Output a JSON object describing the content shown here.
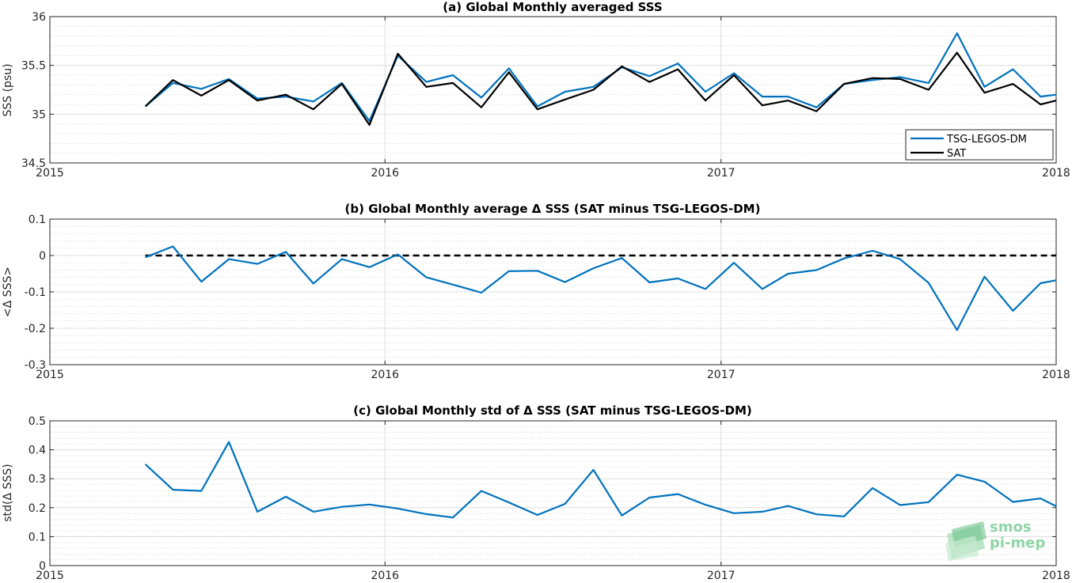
{
  "chart_data": [
    {
      "type": "line",
      "title": "(a) Global Monthly averaged SSS",
      "xlabel": "",
      "ylabel": "SSS (psu)",
      "xlim": [
        "2015-01-01",
        "2018-01-01"
      ],
      "ylim": [
        34.5,
        36
      ],
      "xticks": [
        "2015",
        "2016",
        "2017",
        "2018"
      ],
      "yticks": [
        "34.5",
        "35",
        "35.5",
        "36"
      ],
      "grid": true,
      "legend": "bottom-right",
      "x": [
        "2015-04-15",
        "2015-05-15",
        "2015-06-15",
        "2015-07-15",
        "2015-08-15",
        "2015-09-15",
        "2015-10-15",
        "2015-11-15",
        "2015-12-15",
        "2016-01-15",
        "2016-02-15",
        "2016-03-15",
        "2016-04-15",
        "2016-05-15",
        "2016-06-15",
        "2016-07-15",
        "2016-08-15",
        "2016-09-15",
        "2016-10-15",
        "2016-11-15",
        "2016-12-15",
        "2017-01-15",
        "2017-02-15",
        "2017-03-15",
        "2017-04-15",
        "2017-05-15",
        "2017-06-15",
        "2017-07-15",
        "2017-08-15",
        "2017-09-15",
        "2017-10-15",
        "2017-11-15",
        "2017-12-15",
        "2018-01-01"
      ],
      "series": [
        {
          "name": "TSG-LEGOS-DM",
          "color": "#0072BD",
          "values": [
            35.08,
            35.32,
            35.26,
            35.36,
            35.16,
            35.18,
            35.13,
            35.32,
            34.93,
            35.6,
            35.33,
            35.4,
            35.17,
            35.47,
            35.08,
            35.23,
            35.28,
            35.48,
            35.39,
            35.52,
            35.23,
            35.42,
            35.18,
            35.18,
            35.07,
            35.31,
            35.35,
            35.38,
            35.32,
            35.83,
            35.28,
            35.46,
            35.18,
            35.2
          ]
        },
        {
          "name": "SAT",
          "color": "#000000",
          "values": [
            35.08,
            35.35,
            35.19,
            35.35,
            35.14,
            35.2,
            35.05,
            35.31,
            34.89,
            35.62,
            35.28,
            35.32,
            35.07,
            35.43,
            35.05,
            35.15,
            35.25,
            35.49,
            35.33,
            35.46,
            35.14,
            35.4,
            35.09,
            35.14,
            35.03,
            35.31,
            35.37,
            35.36,
            35.25,
            35.63,
            35.22,
            35.31,
            35.1,
            35.14
          ]
        }
      ]
    },
    {
      "type": "line",
      "title": "(b) Global Monthly average Δ SSS (SAT minus TSG-LEGOS-DM)",
      "xlabel": "",
      "ylabel": "<Δ SSS>",
      "xlim": [
        "2015-01-01",
        "2018-01-01"
      ],
      "ylim": [
        -0.3,
        0.1
      ],
      "xticks": [
        "2015",
        "2016",
        "2017",
        "2018"
      ],
      "yticks": [
        "-0.3",
        "-0.2",
        "-0.1",
        "0",
        "0.1"
      ],
      "grid": true,
      "reference_line": {
        "y": 0,
        "style": "dashed",
        "color": "#000000"
      },
      "x": [
        "2015-04-15",
        "2015-05-15",
        "2015-06-15",
        "2015-07-15",
        "2015-08-15",
        "2015-09-15",
        "2015-10-15",
        "2015-11-15",
        "2015-12-15",
        "2016-01-15",
        "2016-02-15",
        "2016-03-15",
        "2016-04-15",
        "2016-05-15",
        "2016-06-15",
        "2016-07-15",
        "2016-08-15",
        "2016-09-15",
        "2016-10-15",
        "2016-11-15",
        "2016-12-15",
        "2017-01-15",
        "2017-02-15",
        "2017-03-15",
        "2017-04-15",
        "2017-05-15",
        "2017-06-15",
        "2017-07-15",
        "2017-08-15",
        "2017-09-15",
        "2017-10-15",
        "2017-11-15",
        "2017-12-15",
        "2018-01-01"
      ],
      "series": [
        {
          "color": "#0072BD",
          "values": [
            -0.005,
            0.025,
            -0.072,
            -0.01,
            -0.023,
            0.01,
            -0.077,
            -0.01,
            -0.032,
            0.003,
            -0.06,
            -0.08,
            -0.102,
            -0.043,
            -0.042,
            -0.073,
            -0.035,
            -0.007,
            -0.074,
            -0.063,
            -0.092,
            -0.02,
            -0.092,
            -0.05,
            -0.04,
            -0.008,
            0.013,
            -0.01,
            -0.075,
            -0.205,
            -0.058,
            -0.152,
            -0.076,
            -0.068
          ]
        }
      ]
    },
    {
      "type": "line",
      "title": "(c) Global Monthly std of Δ SSS (SAT minus TSG-LEGOS-DM)",
      "xlabel": "",
      "ylabel": "std(Δ SSS)",
      "xlim": [
        "2015-01-01",
        "2018-01-01"
      ],
      "ylim": [
        0,
        0.5
      ],
      "xticks": [
        "2015",
        "2016",
        "2017",
        "2018"
      ],
      "yticks": [
        "0",
        "0.1",
        "0.2",
        "0.3",
        "0.4",
        "0.5"
      ],
      "grid": true,
      "x": [
        "2015-04-15",
        "2015-05-15",
        "2015-06-15",
        "2015-07-15",
        "2015-08-15",
        "2015-09-15",
        "2015-10-15",
        "2015-11-15",
        "2015-12-15",
        "2016-01-15",
        "2016-02-15",
        "2016-03-15",
        "2016-04-15",
        "2016-05-15",
        "2016-06-15",
        "2016-07-15",
        "2016-08-15",
        "2016-09-15",
        "2016-10-15",
        "2016-11-15",
        "2016-12-15",
        "2017-01-15",
        "2017-02-15",
        "2017-03-15",
        "2017-04-15",
        "2017-05-15",
        "2017-06-15",
        "2017-07-15",
        "2017-08-15",
        "2017-09-15",
        "2017-10-15",
        "2017-11-15",
        "2017-12-15",
        "2018-01-01"
      ],
      "series": [
        {
          "color": "#0072BD",
          "values": [
            0.35,
            0.262,
            0.258,
            0.427,
            0.186,
            0.238,
            0.186,
            0.203,
            0.211,
            0.197,
            0.178,
            0.166,
            0.258,
            0.218,
            0.175,
            0.213,
            0.331,
            0.173,
            0.235,
            0.247,
            0.21,
            0.181,
            0.186,
            0.206,
            0.177,
            0.17,
            0.268,
            0.209,
            0.219,
            0.314,
            0.29,
            0.22,
            0.232,
            0.205
          ]
        }
      ]
    }
  ],
  "logo": {
    "line1": "smos",
    "line2": "pi-mep",
    "color": "#7ccf97",
    "icon": "smos-pimep-logo-icon"
  }
}
